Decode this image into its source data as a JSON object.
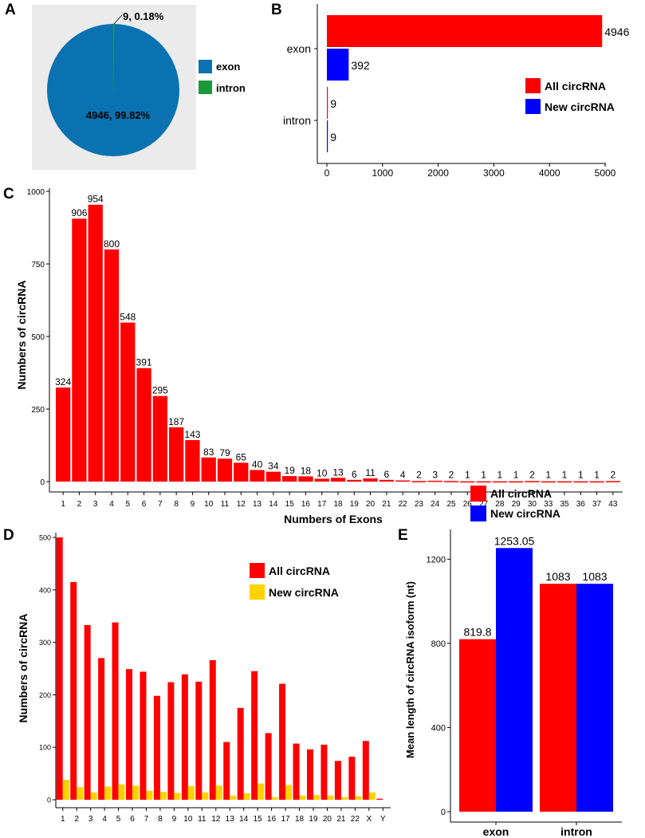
{
  "panels": {
    "a": "A",
    "b": "B",
    "c": "C",
    "d": "D",
    "e": "E"
  },
  "chart_data": [
    {
      "id": "A",
      "type": "pie",
      "labels": [
        "exon",
        "intron"
      ],
      "values": [
        4946,
        9
      ],
      "slice_labels": [
        "4946, 99.82%",
        "9, 0.18%"
      ],
      "colors": [
        "#0a72b0",
        "#1a9a3a"
      ],
      "legend": [
        "exon",
        "intron"
      ],
      "background": "#ebebeb"
    },
    {
      "id": "B",
      "type": "bar",
      "orientation": "horizontal",
      "categories": [
        "exon",
        "intron"
      ],
      "series": [
        {
          "name": "All circRNA",
          "color": "#ff0000",
          "values": [
            4946,
            9
          ]
        },
        {
          "name": "New circRNA",
          "color": "#0000ff",
          "values": [
            392,
            9
          ]
        }
      ],
      "data_labels": [
        [
          "4946",
          "9"
        ],
        [
          "392",
          "9"
        ]
      ],
      "xticks": [
        "0",
        "1000",
        "2000",
        "3000",
        "4000",
        "5000"
      ],
      "xlim": [
        0,
        5000
      ],
      "legend": [
        "All circRNA",
        "New circRNA"
      ]
    },
    {
      "id": "C",
      "type": "bar",
      "categories": [
        "1",
        "2",
        "3",
        "4",
        "5",
        "6",
        "7",
        "8",
        "9",
        "10",
        "11",
        "12",
        "13",
        "14",
        "15",
        "16",
        "17",
        "18",
        "19",
        "20",
        "21",
        "22",
        "23",
        "24",
        "25",
        "26",
        "27",
        "28",
        "29",
        "30",
        "33",
        "35",
        "36",
        "37",
        "43"
      ],
      "values": [
        324,
        906,
        954,
        800,
        548,
        391,
        295,
        187,
        143,
        83,
        79,
        65,
        40,
        34,
        19,
        18,
        10,
        13,
        6,
        11,
        6,
        4,
        2,
        3,
        2,
        1,
        1,
        1,
        1,
        2,
        1,
        1,
        1,
        1,
        2
      ],
      "data_labels": [
        "324",
        "906",
        "954",
        "800",
        "548",
        "391",
        "295",
        "187",
        "143",
        "83",
        "79",
        "65",
        "40",
        "34",
        "19",
        "18",
        "10",
        "13",
        "6",
        "11",
        "6",
        "4",
        "2",
        "3",
        "2",
        "1",
        "1",
        "1",
        "1",
        "2",
        "1",
        "1",
        "1",
        "1",
        "2"
      ],
      "color": "#ff0000",
      "xlabel": "Numbers of Exons",
      "ylabel": "Numbers of circRNA",
      "yticks": [
        "0",
        "250",
        "500",
        "750",
        "1000"
      ],
      "ylim": [
        0,
        1040
      ]
    },
    {
      "id": "D",
      "type": "bar",
      "categories": [
        "1",
        "2",
        "3",
        "4",
        "5",
        "6",
        "7",
        "8",
        "9",
        "10",
        "11",
        "12",
        "13",
        "14",
        "15",
        "16",
        "17",
        "18",
        "19",
        "20",
        "21",
        "22",
        "X",
        "Y"
      ],
      "series": [
        {
          "name": "All circRNA",
          "color": "#ff0000",
          "values": [
            500,
            415,
            333,
            270,
            338,
            249,
            244,
            198,
            224,
            239,
            225,
            266,
            110,
            175,
            245,
            127,
            221,
            107,
            96,
            105,
            74,
            82,
            112,
            2
          ]
        },
        {
          "name": "New circRNA",
          "color": "#ffd200",
          "values": [
            38,
            24,
            14,
            25,
            29,
            27,
            17,
            15,
            13,
            26,
            14,
            27,
            8,
            12,
            31,
            5,
            28,
            8,
            9,
            8,
            5,
            7,
            14,
            0
          ]
        }
      ],
      "ylabel": "Numbers of circRNA",
      "yticks": [
        "0",
        "100",
        "200",
        "300",
        "400",
        "500"
      ],
      "ylim": [
        0,
        515
      ],
      "legend": [
        "All circRNA",
        "New circRNA"
      ]
    },
    {
      "id": "E",
      "type": "bar",
      "categories": [
        "exon",
        "intron"
      ],
      "series": [
        {
          "name": "All circRNA",
          "color": "#ff0000",
          "values": [
            819.8,
            1083
          ]
        },
        {
          "name": "New circRNA",
          "color": "#0000ff",
          "values": [
            1253.05,
            1083
          ]
        }
      ],
      "data_labels": [
        [
          "819.8",
          "1083"
        ],
        [
          "1253.05",
          "1083"
        ]
      ],
      "ylabel": "Mean length of circRNA isoform (nt)",
      "yticks": [
        "0",
        "400",
        "800",
        "1200"
      ],
      "ylim": [
        0,
        1330
      ],
      "legend": [
        "All circRNA",
        "New circRNA"
      ]
    }
  ]
}
